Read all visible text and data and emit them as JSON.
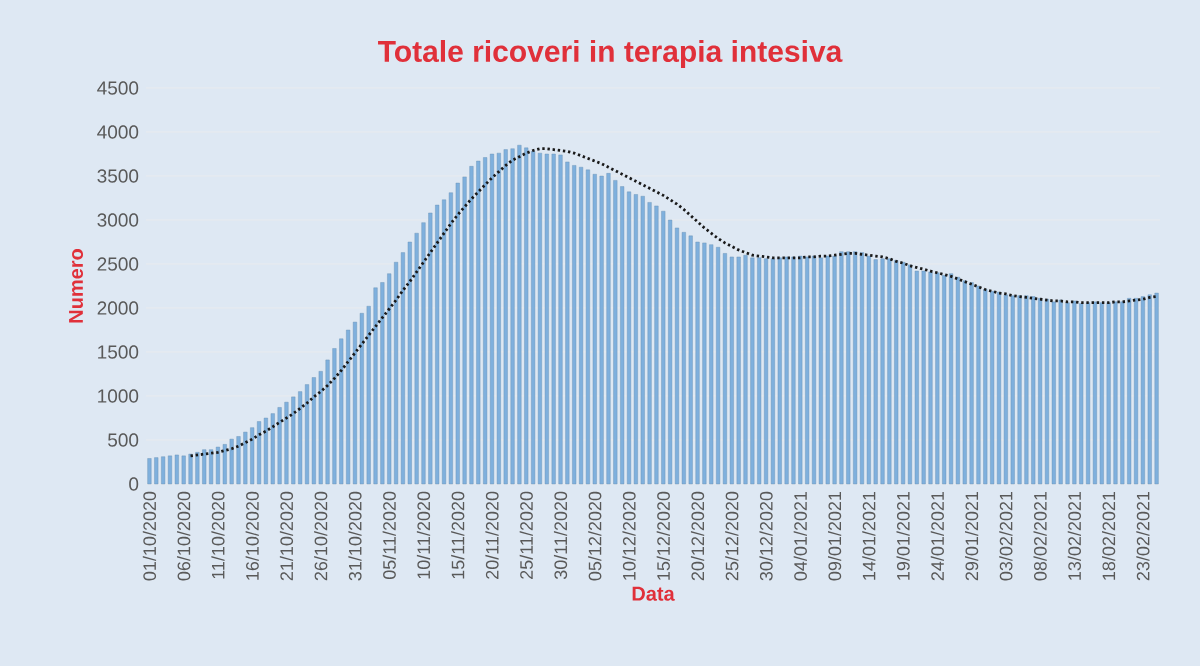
{
  "chart_data": {
    "type": "bar",
    "title": "Totale ricoveri in terapia intesiva",
    "xlabel": "Data",
    "ylabel": "Numero",
    "categories": [
      "01/10/2020",
      null,
      null,
      null,
      null,
      "06/10/2020",
      null,
      null,
      null,
      null,
      "11/10/2020",
      null,
      null,
      null,
      null,
      "16/10/2020",
      null,
      null,
      null,
      null,
      "21/10/2020",
      null,
      null,
      null,
      null,
      "26/10/2020",
      null,
      null,
      null,
      null,
      "31/10/2020",
      null,
      null,
      null,
      null,
      "05/11/2020",
      null,
      null,
      null,
      null,
      "10/11/2020",
      null,
      null,
      null,
      null,
      "15/11/2020",
      null,
      null,
      null,
      null,
      "20/11/2020",
      null,
      null,
      null,
      null,
      "25/11/2020",
      null,
      null,
      null,
      null,
      "30/11/2020",
      null,
      null,
      null,
      null,
      "05/12/2020",
      null,
      null,
      null,
      null,
      "10/12/2020",
      null,
      null,
      null,
      null,
      "15/12/2020",
      null,
      null,
      null,
      null,
      "20/12/2020",
      null,
      null,
      null,
      null,
      "25/12/2020",
      null,
      null,
      null,
      null,
      "30/12/2020",
      null,
      null,
      null,
      null,
      "04/01/2021",
      null,
      null,
      null,
      null,
      "09/01/2021",
      null,
      null,
      null,
      null,
      "14/01/2021",
      null,
      null,
      null,
      null,
      "19/01/2021",
      null,
      null,
      null,
      null,
      "24/01/2021",
      null,
      null,
      null,
      null,
      "29/01/2021",
      null,
      null,
      null,
      null,
      "03/02/2021",
      null,
      null,
      null,
      null,
      "08/02/2021",
      null,
      null,
      null,
      null,
      "13/02/2021",
      null,
      null,
      null,
      null,
      "18/02/2021",
      null,
      null,
      null,
      null,
      "23/02/2021",
      null,
      null
    ],
    "series": [
      {
        "color": "#7fb0dd",
        "values": [
          290,
          300,
          310,
          320,
          330,
          320,
          340,
          360,
          390,
          390,
          420,
          450,
          510,
          540,
          590,
          640,
          710,
          750,
          800,
          870,
          930,
          990,
          1050,
          1130,
          1210,
          1280,
          1410,
          1540,
          1650,
          1750,
          1840,
          1940,
          2020,
          2230,
          2290,
          2390,
          2520,
          2630,
          2750,
          2850,
          2970,
          3080,
          3170,
          3230,
          3310,
          3420,
          3490,
          3610,
          3670,
          3710,
          3750,
          3760,
          3800,
          3810,
          3850,
          3820,
          3780,
          3760,
          3750,
          3750,
          3740,
          3660,
          3620,
          3600,
          3570,
          3520,
          3500,
          3530,
          3450,
          3380,
          3320,
          3290,
          3270,
          3200,
          3160,
          3100,
          3000,
          2910,
          2860,
          2820,
          2750,
          2740,
          2720,
          2690,
          2620,
          2580,
          2580,
          2600,
          2570,
          2570,
          2560,
          2560,
          2570,
          2580,
          2580,
          2590,
          2580,
          2590,
          2570,
          2590,
          2590,
          2640,
          2640,
          2640,
          2630,
          2590,
          2550,
          2560,
          2560,
          2540,
          2520,
          2490,
          2420,
          2420,
          2410,
          2400,
          2370,
          2390,
          2350,
          2310,
          2290,
          2250,
          2210,
          2190,
          2180,
          2150,
          2140,
          2140,
          2140,
          2130,
          2110,
          2100,
          2070,
          2090,
          2060,
          2080,
          2050,
          2060,
          2070,
          2060,
          2060,
          2070,
          2070,
          2110,
          2110,
          2130,
          2150,
          2170
        ]
      },
      {
        "type": "line",
        "color": "#1a1a1a",
        "line_style": "dotted",
        "values": [
          null,
          null,
          null,
          null,
          null,
          null,
          320,
          330,
          340,
          350,
          360,
          380,
          400,
          430,
          470,
          510,
          560,
          600,
          650,
          700,
          750,
          800,
          860,
          920,
          990,
          1050,
          1120,
          1200,
          1290,
          1390,
          1490,
          1590,
          1690,
          1790,
          1890,
          1990,
          2090,
          2200,
          2300,
          2410,
          2520,
          2630,
          2740,
          2850,
          2960,
          3060,
          3150,
          3240,
          3320,
          3400,
          3480,
          3550,
          3620,
          3680,
          3720,
          3760,
          3790,
          3810,
          3810,
          3800,
          3790,
          3780,
          3760,
          3730,
          3700,
          3670,
          3640,
          3600,
          3560,
          3520,
          3480,
          3440,
          3400,
          3360,
          3320,
          3280,
          3230,
          3180,
          3120,
          3050,
          2980,
          2910,
          2850,
          2790,
          2740,
          2700,
          2660,
          2630,
          2600,
          2590,
          2580,
          2570,
          2570,
          2570,
          2570,
          2570,
          2580,
          2580,
          2590,
          2590,
          2600,
          2610,
          2620,
          2620,
          2610,
          2600,
          2590,
          2580,
          2560,
          2530,
          2510,
          2480,
          2460,
          2440,
          2420,
          2400,
          2380,
          2360,
          2330,
          2300,
          2270,
          2240,
          2210,
          2190,
          2170,
          2160,
          2140,
          2130,
          2120,
          2110,
          2100,
          2090,
          2080,
          2080,
          2070,
          2070,
          2060,
          2060,
          2060,
          2060,
          2060,
          2070,
          2070,
          2080,
          2090,
          2100,
          2120,
          2130
        ]
      }
    ],
    "ylim": [
      0,
      4500
    ],
    "yticks": [
      0,
      500,
      1000,
      1500,
      2000,
      2500,
      3000,
      3500,
      4000,
      4500
    ],
    "grid": "y"
  }
}
